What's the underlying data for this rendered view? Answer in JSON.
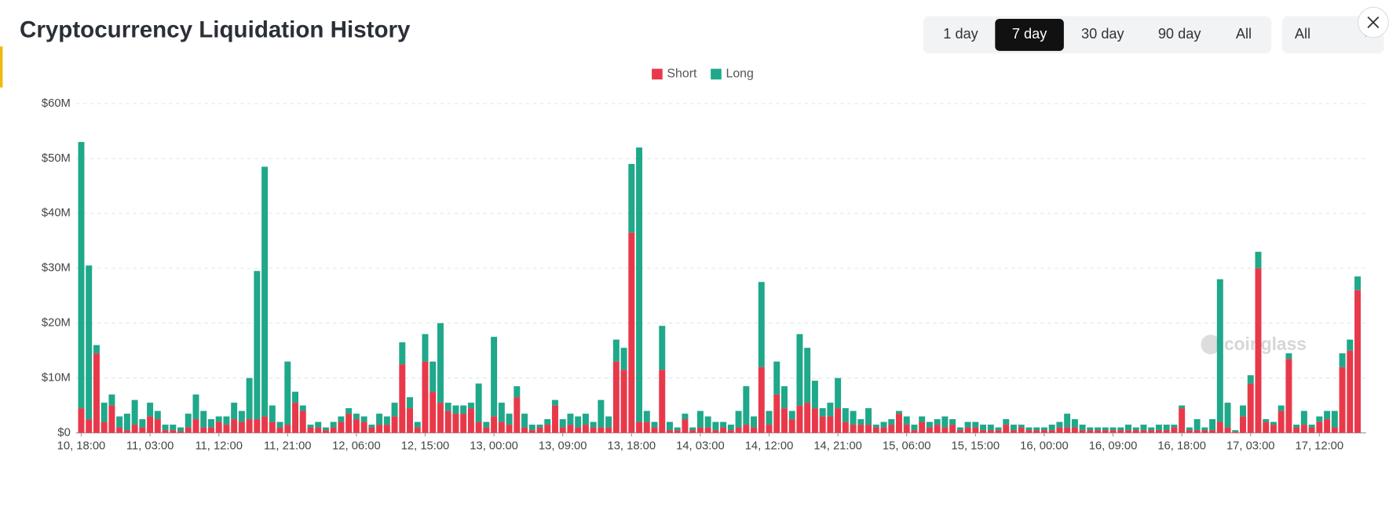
{
  "chart_data": {
    "type": "stacked_bar",
    "title": "Cryptocurrency Liquidation History",
    "categories": [
      "10, 18:00",
      null,
      null,
      null,
      null,
      null,
      null,
      null,
      null,
      "11, 03:00",
      null,
      null,
      null,
      null,
      null,
      null,
      null,
      null,
      "11, 12:00",
      null,
      null,
      null,
      null,
      null,
      null,
      null,
      null,
      "11, 21:00",
      null,
      null,
      null,
      null,
      null,
      null,
      null,
      null,
      "12, 06:00",
      null,
      null,
      null,
      null,
      null,
      null,
      null,
      null,
      "12, 15:00",
      null,
      null,
      null,
      null,
      null,
      null,
      null,
      null,
      "13, 00:00",
      null,
      null,
      null,
      null,
      null,
      null,
      null,
      null,
      "13, 09:00",
      null,
      null,
      null,
      null,
      null,
      null,
      null,
      null,
      "13, 18:00",
      null,
      null,
      null,
      null,
      null,
      null,
      null,
      null,
      "14, 03:00",
      null,
      null,
      null,
      null,
      null,
      null,
      null,
      null,
      "14, 12:00",
      null,
      null,
      null,
      null,
      null,
      null,
      null,
      null,
      "14, 21:00",
      null,
      null,
      null,
      null,
      null,
      null,
      null,
      null,
      "15, 06:00",
      null,
      null,
      null,
      null,
      null,
      null,
      null,
      null,
      "15, 15:00",
      null,
      null,
      null,
      null,
      null,
      null,
      null,
      null,
      "16, 00:00",
      null,
      null,
      null,
      null,
      null,
      null,
      null,
      null,
      "16, 09:00",
      null,
      null,
      null,
      null,
      null,
      null,
      null,
      null,
      "16, 18:00",
      null,
      null,
      null,
      null,
      null,
      null,
      null,
      null,
      "17, 03:00",
      null,
      null,
      null,
      null,
      null,
      null,
      null,
      null,
      "17, 12:00",
      null,
      null,
      null,
      null,
      null
    ],
    "series": [
      {
        "name": "Short",
        "color": "#e8394a",
        "values": [
          4.5,
          2.5,
          14.5,
          2,
          5,
          1,
          0.5,
          1.5,
          1,
          3,
          2.5,
          0.5,
          0.5,
          0.3,
          1,
          2.5,
          1,
          1,
          2,
          1.5,
          2.5,
          2,
          2.5,
          2.5,
          3,
          2,
          1,
          1.5,
          5.5,
          4,
          1,
          1,
          0.5,
          1,
          2,
          3.5,
          2.5,
          2,
          1,
          1.5,
          1.5,
          3,
          12.5,
          4.5,
          1,
          13,
          7.5,
          5.5,
          4,
          3.5,
          3.5,
          4.5,
          2,
          1,
          3,
          2,
          1.5,
          6.5,
          1,
          0.5,
          1,
          1.5,
          5,
          1,
          1.5,
          1,
          1.5,
          1,
          1,
          1,
          13,
          11.5,
          36.5,
          2,
          2,
          1,
          11.5,
          0.5,
          0.5,
          2.5,
          0.5,
          1,
          1,
          0.5,
          1,
          0.5,
          1,
          1.5,
          1,
          12,
          1.5,
          7,
          4.5,
          2.5,
          5,
          5.5,
          4.5,
          3,
          3,
          4.5,
          2,
          1.5,
          1.5,
          1.5,
          1,
          1,
          1.5,
          3.5,
          1.5,
          0.5,
          2,
          1,
          1.5,
          1,
          1.5,
          0.5,
          1,
          1,
          0.5,
          0.5,
          0.5,
          1.5,
          0.5,
          1,
          0.5,
          0.5,
          0.5,
          0.5,
          1,
          1,
          1,
          0.5,
          0.5,
          0.5,
          0.5,
          0.5,
          0.5,
          0.5,
          0.5,
          0.5,
          0.5,
          0.5,
          0.5,
          1,
          4.5,
          0.5,
          0.5,
          0.5,
          0.5,
          2,
          1,
          0.2,
          3,
          9,
          30,
          2,
          1.5,
          4,
          13.5,
          1,
          1.5,
          1,
          2,
          2.5,
          1,
          12,
          15,
          26
        ]
      },
      {
        "name": "Long",
        "color": "#1fa88a",
        "values": [
          48.5,
          28,
          1.5,
          3.5,
          2,
          2,
          3,
          4.5,
          1.5,
          2.5,
          1.5,
          1,
          1,
          0.7,
          2.5,
          4.5,
          3,
          1.5,
          1,
          1.5,
          3,
          2,
          7.5,
          27,
          45.5,
          3,
          1,
          11.5,
          2,
          1,
          0.5,
          1,
          0.5,
          1,
          1,
          1,
          1,
          1,
          0.5,
          2,
          1.5,
          2.5,
          4,
          2,
          1,
          5,
          5.5,
          14.5,
          1.5,
          1.5,
          1.5,
          1,
          7,
          1,
          14.5,
          3.5,
          2,
          2,
          2.5,
          1,
          0.5,
          1,
          1,
          1.5,
          2,
          2,
          2,
          1,
          5,
          2,
          4,
          4,
          12.5,
          50,
          2,
          1,
          8,
          1.5,
          0.5,
          1,
          0.5,
          3,
          2,
          1.5,
          1,
          1,
          3,
          7,
          2,
          15.5,
          2.5,
          6,
          4,
          1.5,
          13,
          10,
          5,
          1.5,
          2.5,
          5.5,
          2.5,
          2.5,
          1,
          3,
          0.5,
          1,
          1,
          0.5,
          1.5,
          1,
          1,
          1,
          1,
          2,
          1,
          0.5,
          1,
          1,
          1,
          1,
          0.5,
          1,
          1,
          0.5,
          0.5,
          0.5,
          0.5,
          1,
          1,
          2.5,
          1.5,
          1,
          0.5,
          0.5,
          0.5,
          0.5,
          0.5,
          1,
          0.5,
          1,
          0.5,
          1,
          1,
          0.5,
          0.5,
          0.5,
          2,
          0.5,
          2,
          26,
          4.5,
          0.3,
          2,
          1.5,
          3,
          0.5,
          0.5,
          1,
          1,
          0.5,
          2.5,
          0.5,
          1,
          1.5,
          3,
          2.5,
          2,
          2.5
        ]
      }
    ],
    "ylim": [
      0,
      60
    ],
    "yticks": [
      {
        "value": 0,
        "label": "$0"
      },
      {
        "value": 10,
        "label": "$10M"
      },
      {
        "value": 20,
        "label": "$20M"
      },
      {
        "value": 30,
        "label": "$30M"
      },
      {
        "value": 40,
        "label": "$40M"
      },
      {
        "value": 50,
        "label": "$50M"
      },
      {
        "value": 60,
        "label": "$60M"
      }
    ],
    "grid": true,
    "legend": "top",
    "watermark": "coinglass"
  },
  "controls": {
    "ranges": [
      "1 day",
      "7 day",
      "30 day",
      "90 day",
      "All"
    ],
    "filter": "All"
  }
}
